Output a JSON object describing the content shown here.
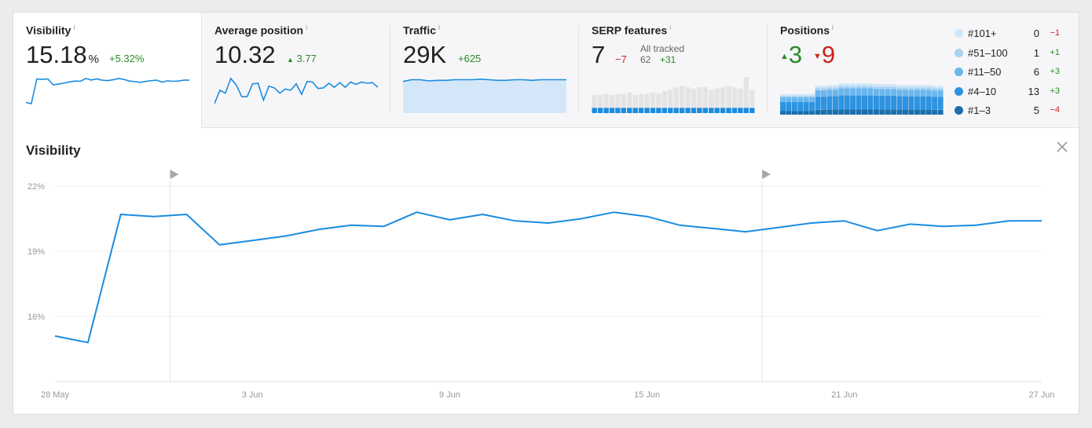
{
  "metrics": {
    "visibility": {
      "title": "Visibility",
      "info": "i",
      "value": "15.18",
      "unit": "%",
      "delta": "+5.32%"
    },
    "avg_position": {
      "title": "Average position",
      "info": "i",
      "value": "10.32",
      "delta": "3.77"
    },
    "traffic": {
      "title": "Traffic",
      "info": "i",
      "value": "29K",
      "delta": "+625"
    },
    "serp": {
      "title": "SERP features",
      "info": "i",
      "value": "7",
      "delta": "−7",
      "all_tracked_label": "All tracked",
      "all_tracked_value": "62",
      "all_tracked_delta": "+31"
    },
    "positions": {
      "title": "Positions",
      "info": "i",
      "up": "3",
      "down": "9",
      "legend": [
        {
          "label": "#101+",
          "count": "0",
          "change": "−1",
          "color": "#cfe6f7",
          "trend": "down"
        },
        {
          "label": "#51–100",
          "count": "1",
          "change": "+1",
          "color": "#a7d2f3",
          "trend": "up"
        },
        {
          "label": "#11–50",
          "count": "6",
          "change": "+3",
          "color": "#6ab7ee",
          "trend": "up"
        },
        {
          "label": "#4–10",
          "count": "13",
          "change": "+3",
          "color": "#2e93e0",
          "trend": "up"
        },
        {
          "label": "#1–3",
          "count": "5",
          "change": "−4",
          "color": "#1a6fad",
          "trend": "down"
        }
      ]
    }
  },
  "chart": {
    "title": "Visibility",
    "close_icon": "close-icon",
    "marker_icon": "flag-marker-icon"
  },
  "chart_data": {
    "type": "line",
    "title": "Visibility",
    "x_ticks": [
      "28 May",
      "3 Jun",
      "9 Jun",
      "15 Jun",
      "21 Jun",
      "27 Jun"
    ],
    "y_ticks": [
      "22%",
      "19%",
      "16%"
    ],
    "ylim": [
      13,
      22
    ],
    "unit": "%",
    "markers_x": [
      3.5,
      21.5
    ],
    "series": [
      {
        "x": [
          0,
          1,
          2,
          3,
          4,
          5,
          6,
          7,
          8,
          9,
          10,
          11,
          12,
          13,
          14,
          15,
          16,
          17,
          18,
          19,
          20,
          21,
          22,
          23,
          24,
          25,
          26,
          27,
          28,
          29,
          30
        ],
        "values": [
          15.1,
          14.8,
          20.7,
          20.6,
          20.7,
          19.3,
          19.5,
          19.7,
          20.0,
          20.2,
          20.15,
          20.8,
          20.45,
          20.7,
          20.4,
          20.3,
          20.5,
          20.8,
          20.6,
          20.2,
          20.05,
          19.9,
          20.1,
          20.3,
          20.4,
          19.95,
          20.25,
          20.15,
          20.2,
          20.4,
          20.4
        ]
      }
    ],
    "grid": true
  },
  "sparklines": {
    "visibility": [
      15.1,
      14.8,
      20.7,
      20.6,
      20.7,
      19.3,
      19.5,
      19.7,
      20.0,
      20.2,
      20.15,
      20.8,
      20.45,
      20.7,
      20.4,
      20.3,
      20.5,
      20.8,
      20.6,
      20.2,
      20.05,
      19.9,
      20.1,
      20.3,
      20.4,
      19.95,
      20.25,
      20.15,
      20.2,
      20.4,
      20.4
    ],
    "avg_position": [
      14.1,
      11.8,
      12.3,
      9.8,
      10.9,
      12.9,
      12.9,
      10.7,
      10.6,
      13.5,
      11.1,
      11.4,
      12.3,
      11.6,
      11.8,
      10.7,
      12.5,
      10.3,
      10.4,
      11.5,
      11.4,
      10.6,
      11.3,
      10.5,
      11.3,
      10.4,
      10.8,
      10.4,
      10.6,
      10.5,
      11.3
    ],
    "traffic": [
      29.3,
      29.6,
      29.6,
      29.4,
      29.5,
      29.5,
      29.6,
      29.6,
      29.6,
      29.7,
      29.6,
      29.5,
      29.5,
      29.6,
      29.6,
      29.5,
      29.6,
      29.6,
      29.6,
      29.6
    ],
    "serp_all": [
      14,
      14,
      15,
      14,
      15,
      15,
      16,
      14,
      15,
      15,
      16,
      15,
      17,
      18,
      20,
      21,
      20,
      19,
      20,
      20,
      18,
      19,
      20,
      21,
      20,
      19,
      28,
      18
    ],
    "serp_owned": [
      4,
      4,
      4,
      4,
      4,
      4,
      4,
      4,
      4,
      4,
      4,
      4,
      4,
      4,
      4,
      4,
      4,
      4,
      4,
      4,
      4,
      4,
      4,
      4,
      4,
      4,
      4,
      4
    ],
    "positions_total": [
      25,
      25,
      25,
      25,
      25,
      25,
      35,
      35,
      36,
      36,
      38,
      38,
      38,
      38,
      38,
      38,
      37,
      37,
      37,
      37,
      36,
      36,
      36,
      36,
      36,
      36,
      35,
      35
    ]
  }
}
